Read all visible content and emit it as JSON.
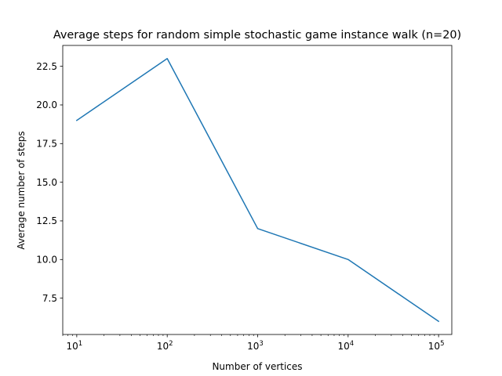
{
  "chart_data": {
    "type": "line",
    "title": "Average steps for random simple stochastic game instance walk (n=20)",
    "xlabel": "Number of vertices",
    "ylabel": "Average number of steps",
    "xscale": "log",
    "x": [
      10,
      100,
      1000,
      10000,
      100000
    ],
    "x_tick_labels": [
      {
        "base": "10",
        "exp": "1"
      },
      {
        "base": "10",
        "exp": "2"
      },
      {
        "base": "10",
        "exp": "3"
      },
      {
        "base": "10",
        "exp": "4"
      },
      {
        "base": "10",
        "exp": "5"
      }
    ],
    "y_ticks": [
      7.5,
      10.0,
      12.5,
      15.0,
      17.5,
      20.0,
      22.5
    ],
    "y_tick_labels": [
      "7.5",
      "10.0",
      "12.5",
      "15.0",
      "17.5",
      "20.0",
      "22.5"
    ],
    "xlim": [
      7.0,
      140000
    ],
    "ylim": [
      5.15,
      23.85
    ],
    "grid": false,
    "series": [
      {
        "values": [
          19,
          23,
          12,
          10,
          6
        ],
        "color": "#1f77b4"
      }
    ]
  }
}
